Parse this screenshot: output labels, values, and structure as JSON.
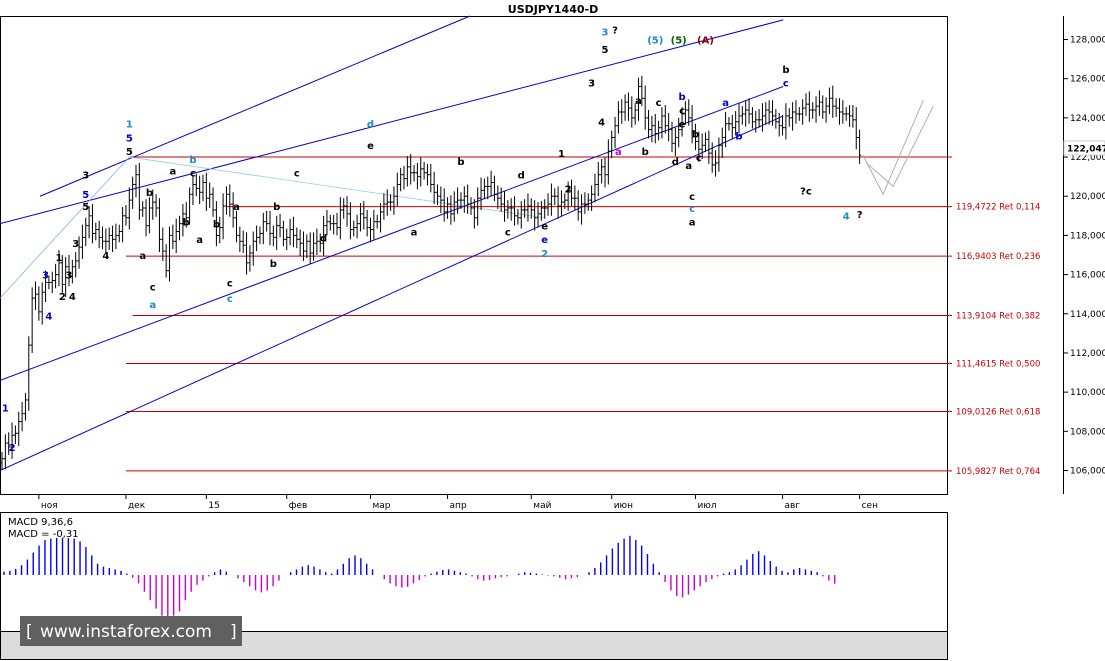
{
  "title": "USDJPY1440-D",
  "chart_data": {
    "type": "ohlc",
    "title": "USDJPY1440-D",
    "ylim": [
      104.8,
      129.2
    ],
    "y_ticks": [
      "106,000",
      "108,000",
      "110,000",
      "112,000",
      "114,000",
      "116,000",
      "118,000",
      "120,000",
      "122,000",
      "124,000",
      "126,000",
      "128,000"
    ],
    "x_ticks": [
      "ноя",
      "дек",
      "15",
      "фев",
      "мар",
      "апр",
      "май",
      "июн",
      "июл",
      "авг",
      "сен"
    ],
    "current_price_label": "122,047",
    "current_price": 122.047,
    "closes": [
      106.6,
      107.4,
      107.2,
      107.8,
      107.9,
      108.5,
      108.9,
      109.6,
      112.4,
      114.8,
      115.0,
      114.1,
      115.1,
      115.6,
      115.6,
      115.7,
      116.0,
      116.6,
      115.5,
      116.4,
      115.9,
      116.4,
      116.7,
      117.4,
      117.9,
      118.5,
      119.0,
      118.1,
      118.3,
      117.9,
      117.7,
      117.7,
      118.0,
      117.8,
      118.0,
      118.2,
      119.0,
      118.9,
      119.8,
      120.6,
      121.1,
      119.3,
      119.4,
      118.5,
      119.4,
      119.7,
      119.4,
      117.8,
      117.2,
      116.2,
      118.0,
      117.7,
      118.2,
      118.6,
      119.1,
      118.9,
      120.1,
      120.6,
      120.4,
      120.2,
      120.7,
      119.9,
      120.1,
      119.3,
      118.0,
      118.4,
      119.5,
      120.1,
      119.6,
      118.9,
      118.0,
      117.7,
      117.5,
      116.6,
      117.1,
      117.7,
      117.9,
      118.1,
      118.7,
      118.6,
      118.1,
      117.9,
      118.5,
      118.4,
      117.8,
      117.9,
      118.3,
      118.0,
      117.8,
      117.6,
      117.2,
      117.7,
      117.1,
      117.6,
      117.7,
      117.6,
      118.5,
      118.7,
      118.6,
      118.6,
      118.4,
      119.3,
      119.5,
      119.1,
      118.3,
      118.4,
      118.6,
      119.1,
      118.9,
      118.4,
      118.3,
      118.7,
      118.7,
      119.2,
      119.6,
      119.7,
      119.7,
      120.0,
      120.6,
      121.1,
      120.9,
      121.5,
      121.2,
      121.2,
      121.0,
      121.4,
      121.2,
      121.1,
      120.6,
      120.2,
      120.0,
      119.8,
      119.2,
      119.6,
      119.1,
      119.7,
      119.8,
      119.8,
      120.0,
      119.6,
      119.4,
      118.9,
      119.9,
      120.3,
      120.5,
      120.5,
      120.7,
      120.1,
      119.9,
      119.6,
      119.3,
      119.4,
      119.4,
      119.0,
      118.9,
      119.3,
      119.3,
      119.5,
      119.3,
      118.9,
      119.1,
      119.4,
      119.4,
      119.6,
      120.0,
      120.0,
      119.5,
      119.7,
      119.8,
      120.3,
      119.9,
      119.9,
      119.2,
      119.6,
      119.6,
      119.8,
      120.1,
      120.6,
      121.1,
      121.5,
      121.1,
      122.3,
      123.0,
      123.6,
      124.3,
      124.3,
      124.8,
      124.5,
      124.0,
      124.4,
      125.6,
      125.0,
      124.0,
      123.4,
      123.6,
      123.2,
      123.5,
      124.1,
      123.6,
      123.4,
      122.7,
      123.0,
      123.4,
      124.2,
      124.4,
      124.0,
      123.3,
      122.8,
      122.4,
      122.6,
      122.9,
      122.2,
      121.6,
      121.7,
      122.6,
      123.0,
      123.7,
      123.7,
      123.5,
      123.8,
      124.1,
      124.2,
      124.4,
      124.2,
      123.8,
      123.9,
      123.9,
      124.1,
      124.4,
      124.3,
      124.1,
      123.8,
      123.6,
      123.5,
      124.1,
      124.0,
      124.3,
      124.2,
      124.2,
      124.5,
      124.7,
      124.4,
      124.4,
      124.6,
      124.8,
      124.3,
      124.6,
      125.0,
      124.6,
      124.5,
      124.3,
      124.2,
      124.2,
      124.1,
      123.9,
      123.0,
      122.1
    ],
    "fib_levels": [
      {
        "value": 119.4722,
        "label": "119,4722 Ret 0,114"
      },
      {
        "value": 116.9403,
        "label": "116,9403 Ret 0,236"
      },
      {
        "value": 113.9104,
        "label": "113,9104 Ret 0,382"
      },
      {
        "value": 111.4615,
        "label": "111,4615 Ret 0,500"
      },
      {
        "value": 109.0126,
        "label": "109,0126 Ret 0,618"
      },
      {
        "value": 105.9827,
        "label": "105,9827 Ret 0,764"
      }
    ],
    "horizontal_level": 122.0,
    "channels": [
      {
        "color": "#0000cc",
        "from": [
          0,
          118.6
        ],
        "to": [
          232,
          129.0
        ]
      },
      {
        "color": "#0000cc",
        "from": [
          0,
          110.6
        ],
        "to": [
          232,
          125.6
        ]
      },
      {
        "color": "#0000cc",
        "from": [
          0,
          106.0
        ],
        "to": [
          232,
          124.1
        ]
      }
    ],
    "macd": {
      "label": "MACD 9,36,6",
      "value_label": "MACD = -0,31",
      "values": [
        0.12,
        0.15,
        0.22,
        0.35,
        0.55,
        0.8,
        1.05,
        1.25,
        1.3,
        1.32,
        1.33,
        1.32,
        1.3,
        1.2,
        1.0,
        0.7,
        0.4,
        0.3,
        0.25,
        0.2,
        0.15,
        0.05,
        -0.1,
        -0.3,
        -0.6,
        -0.9,
        -1.2,
        -1.45,
        -1.55,
        -1.45,
        -1.3,
        -0.9,
        -0.6,
        -0.35,
        -0.2,
        -0.05,
        0.1,
        0.2,
        0.12,
        0.0,
        -0.12,
        -0.25,
        -0.4,
        -0.55,
        -0.62,
        -0.55,
        -0.4,
        -0.2,
        0.0,
        0.1,
        0.2,
        0.3,
        0.35,
        0.3,
        0.2,
        0.1,
        0.05,
        0.2,
        0.4,
        0.6,
        0.7,
        0.6,
        0.4,
        0.2,
        0.0,
        -0.15,
        -0.3,
        -0.4,
        -0.45,
        -0.42,
        -0.3,
        -0.18,
        -0.05,
        0.05,
        0.12,
        0.18,
        0.2,
        0.15,
        0.1,
        0.05,
        -0.05,
        -0.15,
        -0.2,
        -0.18,
        -0.12,
        -0.08,
        -0.05,
        0.0,
        0.05,
        0.1,
        0.08,
        0.05,
        0.02,
        -0.02,
        -0.05,
        -0.1,
        -0.15,
        -0.12,
        -0.08,
        0.0,
        0.1,
        0.25,
        0.45,
        0.7,
        0.95,
        1.15,
        1.3,
        1.4,
        1.25,
        1.05,
        0.75,
        0.4,
        0.1,
        -0.25,
        -0.55,
        -0.75,
        -0.8,
        -0.7,
        -0.55,
        -0.4,
        -0.25,
        -0.15,
        -0.05,
        0.05,
        0.1,
        0.2,
        0.35,
        0.55,
        0.75,
        0.85,
        0.7,
        0.5,
        0.3,
        0.15,
        0.1,
        0.2,
        0.25,
        0.2,
        0.15,
        0.1,
        -0.05,
        -0.2,
        -0.31
      ]
    },
    "wave_labels": [
      {
        "text": "1",
        "color": "#0000cc",
        "i": 1,
        "y": 109.0
      },
      {
        "text": "2",
        "color": "#0000cc",
        "i": 3,
        "y": 107.0
      },
      {
        "text": "3",
        "color": "#0000cc",
        "i": 13,
        "y": 115.8
      },
      {
        "text": "4",
        "color": "#0000cc",
        "i": 14,
        "y": 113.7
      },
      {
        "text": "1",
        "color": "#000000",
        "i": 17,
        "y": 116.7
      },
      {
        "text": "2",
        "color": "#000000",
        "i": 18,
        "y": 114.7
      },
      {
        "text": "3",
        "color": "#000000",
        "i": 20,
        "y": 115.8
      },
      {
        "text": "4",
        "color": "#000000",
        "i": 21,
        "y": 114.7
      },
      {
        "text": "3",
        "color": "#000000",
        "i": 22,
        "y": 117.4
      },
      {
        "text": "5",
        "color": "#000000",
        "i": 25,
        "y": 119.3
      },
      {
        "text": "3",
        "color": "#000000",
        "i": 25,
        "y": 120.9
      },
      {
        "text": "5",
        "color": "#0000cc",
        "i": 25,
        "y": 119.9
      },
      {
        "text": "4",
        "color": "#000000",
        "i": 31,
        "y": 116.8
      },
      {
        "text": "1",
        "color": "#1a8cc4",
        "i": 38,
        "y": 123.5
      },
      {
        "text": "5",
        "color": "#0000cc",
        "i": 38,
        "y": 122.8
      },
      {
        "text": "5",
        "color": "#000000",
        "i": 38,
        "y": 122.1
      },
      {
        "text": "a",
        "color": "#000000",
        "i": 42,
        "y": 116.8
      },
      {
        "text": "c",
        "color": "#000000",
        "i": 45,
        "y": 115.2
      },
      {
        "text": "a",
        "color": "#1a8cc4",
        "i": 45,
        "y": 114.3
      },
      {
        "text": "b",
        "color": "#000000",
        "i": 44,
        "y": 120.0
      },
      {
        "text": "a",
        "color": "#000000",
        "i": 51,
        "y": 121.1
      },
      {
        "text": "b",
        "color": "#1a8cc4",
        "i": 57,
        "y": 121.7
      },
      {
        "text": "c",
        "color": "#000000",
        "i": 57,
        "y": 121.0
      },
      {
        "text": "b",
        "color": "#000000",
        "i": 55,
        "y": 118.5
      },
      {
        "text": "a",
        "color": "#000000",
        "i": 59,
        "y": 117.6
      },
      {
        "text": "b",
        "color": "#000000",
        "i": 64,
        "y": 118.4
      },
      {
        "text": "a",
        "color": "#000000",
        "i": 70,
        "y": 119.3
      },
      {
        "text": "c",
        "color": "#000000",
        "i": 68,
        "y": 115.4
      },
      {
        "text": "c",
        "color": "#1a8cc4",
        "i": 68,
        "y": 114.6
      },
      {
        "text": "b",
        "color": "#000000",
        "i": 82,
        "y": 119.3
      },
      {
        "text": "b",
        "color": "#000000",
        "i": 81,
        "y": 116.4
      },
      {
        "text": "c",
        "color": "#000000",
        "i": 88,
        "y": 121.0
      },
      {
        "text": "d",
        "color": "#000000",
        "i": 96,
        "y": 117.7
      },
      {
        "text": "d",
        "color": "#1a8cc4",
        "i": 110,
        "y": 123.5
      },
      {
        "text": "e",
        "color": "#000000",
        "i": 110,
        "y": 122.4
      },
      {
        "text": "a",
        "color": "#000000",
        "i": 123,
        "y": 118.0
      },
      {
        "text": "b",
        "color": "#000000",
        "i": 137,
        "y": 121.6
      },
      {
        "text": "c",
        "color": "#000000",
        "i": 151,
        "y": 118.0
      },
      {
        "text": "d",
        "color": "#000000",
        "i": 155,
        "y": 120.9
      },
      {
        "text": "e",
        "color": "#000000",
        "i": 162,
        "y": 118.3
      },
      {
        "text": "e",
        "color": "#0000cc",
        "i": 162,
        "y": 117.6
      },
      {
        "text": "2",
        "color": "#1a8cc4",
        "i": 162,
        "y": 116.9
      },
      {
        "text": "1",
        "color": "#000000",
        "i": 167,
        "y": 122.0
      },
      {
        "text": "2",
        "color": "#000000",
        "i": 169,
        "y": 120.2
      },
      {
        "text": "3",
        "color": "#000000",
        "i": 176,
        "y": 125.6
      },
      {
        "text": "4",
        "color": "#000000",
        "i": 179,
        "y": 123.6
      },
      {
        "text": "3",
        "color": "#1a8cc4",
        "i": 180,
        "y": 128.2
      },
      {
        "text": "?",
        "color": "#000000",
        "i": 183,
        "y": 128.3
      },
      {
        "text": "5",
        "color": "#000000",
        "i": 180,
        "y": 127.3
      },
      {
        "text": "(5)",
        "color": "#1a8cc4",
        "i": 195,
        "y": 127.8
      },
      {
        "text": "(5)",
        "color": "#006600",
        "i": 202,
        "y": 127.8
      },
      {
        "text": "(A)",
        "color": "#990000",
        "i": 210,
        "y": 127.8
      },
      {
        "text": "a",
        "color": "#cc00cc",
        "i": 184,
        "y": 122.1
      },
      {
        "text": "a",
        "color": "#000000",
        "i": 190,
        "y": 124.7
      },
      {
        "text": "b",
        "color": "#000000",
        "i": 192,
        "y": 122.1
      },
      {
        "text": "c",
        "color": "#000000",
        "i": 196,
        "y": 124.6
      },
      {
        "text": "b",
        "color": "#0000cc",
        "i": 203,
        "y": 124.9
      },
      {
        "text": "c",
        "color": "#000000",
        "i": 203,
        "y": 124.2
      },
      {
        "text": "e",
        "color": "#000000",
        "i": 203,
        "y": 123.5
      },
      {
        "text": "d",
        "color": "#000000",
        "i": 201,
        "y": 121.6
      },
      {
        "text": "a",
        "color": "#000000",
        "i": 205,
        "y": 121.4
      },
      {
        "text": "b",
        "color": "#000000",
        "i": 207,
        "y": 123.0
      },
      {
        "text": "c",
        "color": "#000000",
        "i": 208,
        "y": 121.8
      },
      {
        "text": "c",
        "color": "#000000",
        "i": 206,
        "y": 119.8
      },
      {
        "text": "c",
        "color": "#1a8cc4",
        "i": 206,
        "y": 119.2
      },
      {
        "text": "a",
        "color": "#000000",
        "i": 206,
        "y": 118.5
      },
      {
        "text": "a",
        "color": "#0000cc",
        "i": 216,
        "y": 124.6
      },
      {
        "text": "b",
        "color": "#0000cc",
        "i": 220,
        "y": 122.9
      },
      {
        "text": "b",
        "color": "#000000",
        "i": 234,
        "y": 126.3
      },
      {
        "text": "c",
        "color": "#0000cc",
        "i": 234,
        "y": 125.6
      },
      {
        "text": "?c",
        "color": "#000000",
        "i": 240,
        "y": 120.1
      },
      {
        "text": "4",
        "color": "#1a8cc4",
        "i": 252,
        "y": 118.8
      },
      {
        "text": "?",
        "color": "#000000",
        "i": 256,
        "y": 118.9
      }
    ],
    "watermark": "www.instaforex.com",
    "macd_sub": "MACD 9,36,6"
  }
}
